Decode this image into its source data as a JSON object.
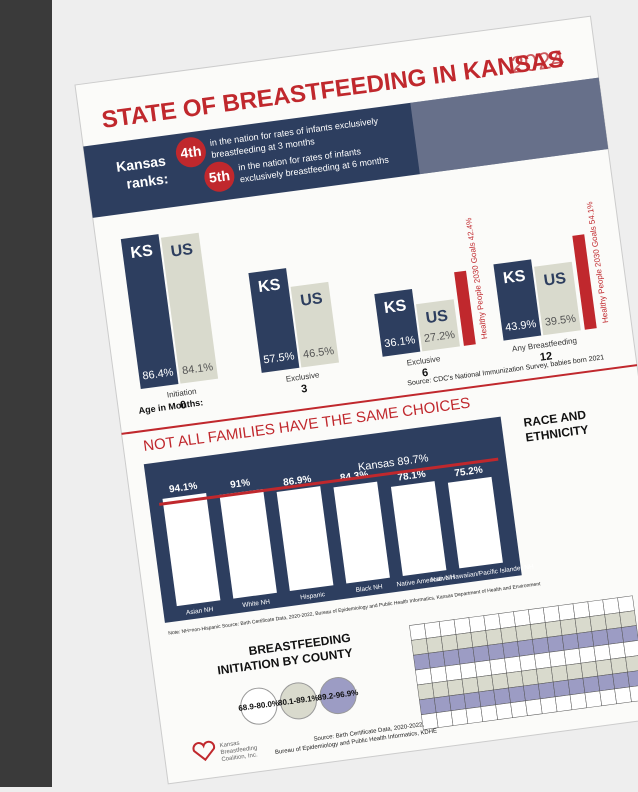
{
  "header": {
    "title": "STATE OF BREASTFEEDING IN KANSAS",
    "year": "2024"
  },
  "ranks": {
    "label_1": "Kansas",
    "label_2": "ranks:",
    "items": [
      {
        "rank": "4th",
        "text_1": "in the nation for rates of infants exclusively",
        "text_2": "breastfeeding at 3 months"
      },
      {
        "rank": "5th",
        "text_1": "in the nation for rates of infants",
        "text_2": "exclusively breastfeeding at 6 months"
      }
    ]
  },
  "chart1": {
    "categories": [
      "Initiation",
      "Exclusive",
      "Exclusive",
      "Any Breastfeeding"
    ],
    "months": [
      "0",
      "3",
      "6",
      "12"
    ],
    "axis_label": "Age in Months:",
    "series": [
      {
        "name": "KS",
        "color": "#2d3e5f",
        "values": [
          86.4,
          57.5,
          36.1,
          43.9
        ],
        "value_labels": [
          "86.4%",
          "57.5%",
          "36.1%",
          "43.9%"
        ]
      },
      {
        "name": "US",
        "color": "#d9dacd",
        "values": [
          84.1,
          46.5,
          27.2,
          39.5
        ],
        "value_labels": [
          "84.1%",
          "46.5%",
          "27.2%",
          "39.5%"
        ]
      }
    ],
    "goals": [
      {
        "group": 2,
        "value": 42.4,
        "label": "Healthy People 2030 Goals 42.4%"
      },
      {
        "group": 3,
        "value": 54.1,
        "label": "Healthy People 2030 Goals 54.1%"
      }
    ],
    "goal_color": "#c0282d",
    "source": "Source: CDC's National Immunization Survey, babies born 2021"
  },
  "chart2": {
    "title": "NOT ALL FAMILIES HAVE THE SAME CHOICES",
    "side_title_1": "RACE AND",
    "side_title_2": "ETHNICITY",
    "categories": [
      "Asian NH",
      "White NH",
      "Hispanic",
      "Black NH",
      "Native American NH",
      "Native Hawaiian/Pacific Islander NH"
    ],
    "values": [
      94.1,
      91,
      86.9,
      84.3,
      78.1,
      75.2
    ],
    "value_labels": [
      "94.1%",
      "91%",
      "86.9%",
      "84.3%",
      "78.1%",
      "75.2%"
    ],
    "reference": {
      "value": 89.7,
      "label": "Kansas 89.7%"
    },
    "note": "Note: NH=non-Hispanic   Source: Birth Certificate Data, 2020-2022, Bureau of Epidemiology and Public Health Informatics, Kansas Department of Health and Environment"
  },
  "map": {
    "title_1": "BREASTFEEDING",
    "title_2": "INITIATION BY COUNTY",
    "legend": [
      "68.9-80.0%",
      "80.1-89.1%",
      "89.2-96.9%"
    ],
    "source_1": "Source: Birth Certificate Data, 2020-2022,",
    "source_2": "Bureau of Epidemiology and Public Health Informatics, KDHE"
  },
  "logo": {
    "line_1": "Kansas",
    "line_2": "Breastfeeding",
    "line_3": "Coalition, Inc."
  }
}
